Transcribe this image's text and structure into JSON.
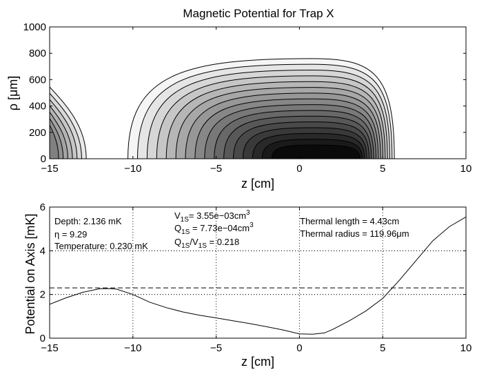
{
  "chart_data": [
    {
      "type": "contour",
      "title": "Magnetic Potential for Trap X",
      "xlabel": "z [cm]",
      "ylabel": "ρ [μm]",
      "xlim": [
        -15,
        10
      ],
      "ylim": [
        0,
        1000
      ],
      "xticks": [
        -15,
        -10,
        -5,
        0,
        5,
        10
      ],
      "xtick_labels": [
        "−15",
        "−10",
        "−5",
        "0",
        "5",
        "10"
      ],
      "yticks": [
        0,
        200,
        400,
        600,
        800,
        1000
      ],
      "ytick_labels": [
        "0",
        "200",
        "400",
        "600",
        "800",
        "1000"
      ],
      "grid": false,
      "colormap": "gray",
      "main_trap": {
        "center_z": 0.8,
        "outer_contour": {
          "z_left": -10.3,
          "z_right": 5.7,
          "rho_max": 760
        },
        "levels": 16
      },
      "edge_region": {
        "outer_contour": {
          "z_right": -12.8,
          "rho_max": 550
        },
        "levels": 7
      }
    },
    {
      "type": "line",
      "xlabel": "z [cm]",
      "ylabel": "Potential on Axis [mK]",
      "xlim": [
        -15,
        10
      ],
      "ylim": [
        0,
        6
      ],
      "xticks": [
        -15,
        -10,
        -5,
        0,
        5,
        10
      ],
      "xtick_labels": [
        "−15",
        "−10",
        "−5",
        "0",
        "5",
        "10"
      ],
      "yticks": [
        0,
        2,
        4,
        6
      ],
      "ytick_labels": [
        "0",
        "2",
        "4",
        "6"
      ],
      "grid": "dotted",
      "series": [
        {
          "style": "solid",
          "x": [
            -15,
            -14,
            -13,
            -12,
            -11.5,
            -11,
            -10,
            -9,
            -8,
            -7,
            -6,
            -5,
            -4,
            -3,
            -2,
            -1,
            0,
            0.8,
            1.5,
            2,
            3,
            4,
            5,
            6,
            7,
            8,
            9,
            10
          ],
          "y": [
            1.55,
            1.85,
            2.1,
            2.26,
            2.27,
            2.25,
            2.0,
            1.65,
            1.4,
            1.2,
            1.05,
            0.93,
            0.8,
            0.67,
            0.53,
            0.38,
            0.2,
            0.18,
            0.24,
            0.4,
            0.8,
            1.25,
            1.82,
            2.65,
            3.55,
            4.45,
            5.1,
            5.55
          ]
        }
      ],
      "reference_lines": [
        {
          "style": "dashed",
          "y": 2.3
        },
        {
          "style": "dotted",
          "y": 2.0
        },
        {
          "style": "dotted",
          "y": 4.0
        }
      ],
      "annotations": {
        "depth": "Depth: 2.136 mK",
        "eta": "η = 9.29",
        "temperature": "Temperature: 0.230 mK",
        "v1s_pre": "V",
        "v1s_sub": "1S",
        "v1s_post": "= 3.55e−03cm",
        "v1s_sup": "3",
        "q1s_pre": "Q",
        "q1s_sub": "1S",
        "q1s_post": " = 7.73e−04cm",
        "q1s_sup": "3",
        "ratio_q": "Q",
        "ratio_q_sub": "1S",
        "ratio_slash": "/V",
        "ratio_v_sub": "1S",
        "ratio_val": " = 0.218",
        "thermal_length": "Thermal length = 4.43cm",
        "thermal_radius": "Thermal radius = 119.96μm"
      }
    }
  ]
}
